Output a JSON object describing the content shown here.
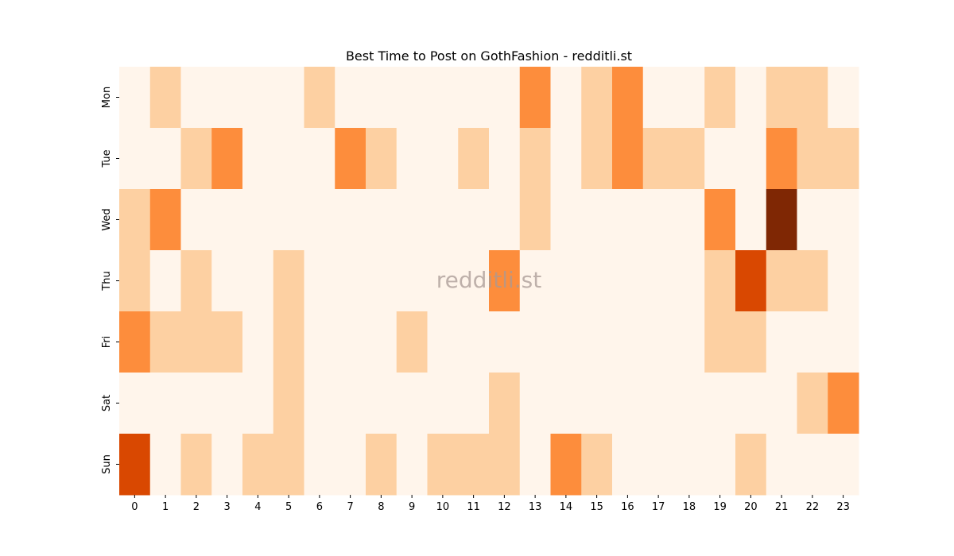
{
  "chart_data": {
    "type": "heatmap",
    "title": "Best Time to Post on GothFashion - redditli.st",
    "watermark": "redditli.st",
    "xlabel": "",
    "ylabel": "",
    "x_categories": [
      "0",
      "1",
      "2",
      "3",
      "4",
      "5",
      "6",
      "7",
      "8",
      "9",
      "10",
      "11",
      "12",
      "13",
      "14",
      "15",
      "16",
      "17",
      "18",
      "19",
      "20",
      "21",
      "22",
      "23"
    ],
    "y_categories": [
      "Mon",
      "Tue",
      "Wed",
      "Thu",
      "Fri",
      "Sat",
      "Sun"
    ],
    "values": [
      [
        0,
        1,
        0,
        0,
        0,
        0,
        1,
        0,
        0,
        0,
        0,
        0,
        0,
        2,
        0,
        1,
        2,
        0,
        0,
        1,
        0,
        1,
        1,
        0
      ],
      [
        0,
        0,
        1,
        2,
        0,
        0,
        0,
        2,
        1,
        0,
        0,
        1,
        0,
        1,
        0,
        1,
        2,
        1,
        1,
        0,
        0,
        2,
        1,
        1
      ],
      [
        1,
        2,
        0,
        0,
        0,
        0,
        0,
        0,
        0,
        0,
        0,
        0,
        0,
        1,
        0,
        0,
        0,
        0,
        0,
        2,
        0,
        4,
        0,
        0
      ],
      [
        1,
        0,
        1,
        0,
        0,
        1,
        0,
        0,
        0,
        0,
        0,
        0,
        2,
        0,
        0,
        0,
        0,
        0,
        0,
        1,
        3,
        1,
        1,
        0
      ],
      [
        2,
        1,
        1,
        1,
        0,
        1,
        0,
        0,
        0,
        1,
        0,
        0,
        0,
        0,
        0,
        0,
        0,
        0,
        0,
        1,
        1,
        0,
        0,
        0
      ],
      [
        0,
        0,
        0,
        0,
        0,
        1,
        0,
        0,
        0,
        0,
        0,
        0,
        1,
        0,
        0,
        0,
        0,
        0,
        0,
        0,
        0,
        0,
        1,
        2
      ],
      [
        3,
        0,
        1,
        0,
        1,
        1,
        0,
        0,
        1,
        0,
        1,
        1,
        1,
        0,
        2,
        1,
        0,
        0,
        0,
        0,
        1,
        0,
        0,
        0
      ]
    ],
    "value_range": [
      0,
      4
    ],
    "colormap": "Oranges",
    "level_colors": [
      "#fff5eb",
      "#fdd0a2",
      "#fd8d3c",
      "#d94801",
      "#7f2704"
    ],
    "grid": false,
    "colorbar": false
  }
}
